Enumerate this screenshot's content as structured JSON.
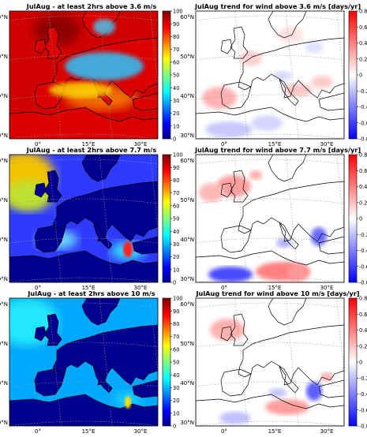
{
  "panels": [
    {
      "id": "a",
      "title": "JulAug - at least 2hrs above 3.6 m/s",
      "kind": "count",
      "lat_labels": [
        "60°N",
        "50°N",
        "40°N",
        "30°N"
      ],
      "lon_labels": [
        "0°",
        "15°E",
        "30°E"
      ],
      "colorbar": {
        "min": 0,
        "max": 100,
        "ticks": [
          "100",
          "90",
          "80",
          "70",
          "60",
          "50",
          "40",
          "30",
          "20",
          "10",
          "0"
        ]
      }
    },
    {
      "id": "b",
      "title": "JulAug trend for wind above 3.6 m/s [days/yr]",
      "kind": "trend",
      "lat_labels": [
        "60°N",
        "50°N",
        "40°N",
        "30°N"
      ],
      "lon_labels": [
        "0°",
        "15°E",
        "30°E"
      ],
      "colorbar": {
        "min": -0.8,
        "max": 0.8,
        "ticks": [
          "0.8",
          "0.6",
          "0.4",
          "0.2",
          "0",
          "-0.2",
          "-0.4",
          "-0.6",
          "-0.8"
        ]
      }
    },
    {
      "id": "c",
      "title": "JulAug - at least 2hrs above 7.7 m/s",
      "kind": "count",
      "lat_labels": [
        "60°N",
        "50°N",
        "40°N",
        "30°N"
      ],
      "lon_labels": [
        "0°",
        "15°E",
        "30°E"
      ],
      "colorbar": {
        "min": 0,
        "max": 100,
        "ticks": [
          "100",
          "90",
          "80",
          "70",
          "60",
          "50",
          "40",
          "30",
          "20",
          "10",
          "0"
        ]
      }
    },
    {
      "id": "d",
      "title": "JulAug trend for wind above 7.7 m/s [days/yr]",
      "kind": "trend",
      "lat_labels": [
        "60°N",
        "50°N",
        "40°N",
        "30°N"
      ],
      "lon_labels": [
        "0°",
        "15°E",
        "30°E"
      ],
      "colorbar": {
        "min": -0.8,
        "max": 0.8,
        "ticks": [
          "0.8",
          "0.6",
          "0.4",
          "0.2",
          "0",
          "-0.2",
          "-0.4",
          "-0.6",
          "-0.8"
        ]
      }
    },
    {
      "id": "e",
      "title": "JulAug - at least 2hrs above 10 m/s",
      "kind": "count",
      "lat_labels": [
        "60°N",
        "50°N",
        "40°N",
        "30°N"
      ],
      "lon_labels": [
        "0°",
        "15°E",
        "30°E"
      ],
      "colorbar": {
        "min": 0,
        "max": 100,
        "ticks": [
          "100",
          "90",
          "80",
          "70",
          "60",
          "50",
          "40",
          "30",
          "20",
          "10",
          "0"
        ]
      }
    },
    {
      "id": "f",
      "title": "JulAug trend for wind above 10 m/s [days/yr]",
      "kind": "trend",
      "lat_labels": [
        "60°N",
        "50°N",
        "40°N",
        "30°N"
      ],
      "lon_labels": [
        "0°",
        "15°E",
        "30°E"
      ],
      "colorbar": {
        "min": -0.8,
        "max": 0.8,
        "ticks": [
          "0.8",
          "0.6",
          "0.4",
          "0.2",
          "0",
          "-0.2",
          "-0.4",
          "-0.6",
          "-0.8"
        ]
      }
    }
  ],
  "colors": {
    "count_low": "#00008f",
    "count_mid": "#7fff7f",
    "count_high": "#800000",
    "trend_neg": "#0000ff",
    "trend_zero": "#ffffff",
    "trend_pos": "#ff0000"
  }
}
